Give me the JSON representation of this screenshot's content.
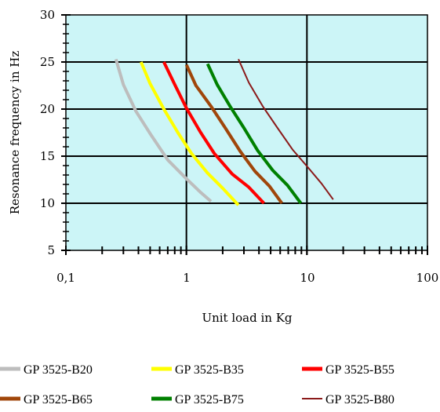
{
  "chart_data": {
    "type": "line",
    "title": "",
    "xlabel": "Unit load in Kg",
    "ylabel": "Resonance frequency in Hz",
    "x_scale": "log",
    "xlim": [
      0.1,
      100
    ],
    "ylim": [
      5,
      30
    ],
    "x_tick_labels": [
      "0,1",
      "1",
      "10",
      "100"
    ],
    "y_tick_labels": [
      "5",
      "10",
      "15",
      "20",
      "25",
      "30"
    ],
    "y_ticks": [
      5,
      10,
      15,
      20,
      25,
      30
    ],
    "x_ticks": [
      0.1,
      1,
      10,
      100
    ],
    "grid": true,
    "plot_background": "#ccf5f7",
    "legend_position": "bottom",
    "series": [
      {
        "name": "GP 3525-B20",
        "color": "#bdbdbd",
        "width": 4,
        "x": [
          0.26,
          0.3,
          0.38,
          0.5,
          0.7,
          1.0,
          1.3,
          1.6
        ],
        "y": [
          25.3,
          22.6,
          19.8,
          17.4,
          14.6,
          12.6,
          11.2,
          10.2
        ]
      },
      {
        "name": "GP 3525-B35",
        "color": "#ffff00",
        "width": 4,
        "x": [
          0.42,
          0.5,
          0.65,
          0.85,
          1.1,
          1.5,
          2.0,
          2.7
        ],
        "y": [
          25.0,
          22.7,
          20.0,
          17.5,
          15.3,
          13.2,
          11.6,
          9.8
        ]
      },
      {
        "name": "GP 3525-B55",
        "color": "#ff0000",
        "width": 4,
        "x": [
          0.65,
          0.8,
          1.0,
          1.3,
          1.7,
          2.4,
          3.3,
          4.4
        ],
        "y": [
          25.0,
          22.6,
          20.1,
          17.6,
          15.3,
          13.1,
          11.7,
          10.0
        ]
      },
      {
        "name": "GP 3525-B65",
        "color": "#a0460a",
        "width": 4,
        "x": [
          1.0,
          1.2,
          1.6,
          2.1,
          2.8,
          3.7,
          4.9,
          6.2
        ],
        "y": [
          24.7,
          22.5,
          20.3,
          18.0,
          15.5,
          13.4,
          11.8,
          10.0
        ]
      },
      {
        "name": "GP 3525-B75",
        "color": "#008000",
        "width": 4,
        "x": [
          1.5,
          1.8,
          2.3,
          3.0,
          3.9,
          5.2,
          6.9,
          8.9
        ],
        "y": [
          24.8,
          22.6,
          20.3,
          18.0,
          15.6,
          13.5,
          11.9,
          10.0
        ]
      },
      {
        "name": "GP 3525-B80",
        "color": "#8b1a1a",
        "width": 2,
        "x": [
          2.7,
          3.3,
          4.3,
          5.7,
          7.6,
          10.2,
          13.2,
          16.5
        ],
        "y": [
          25.3,
          22.8,
          20.3,
          18.0,
          15.7,
          13.8,
          12.1,
          10.4
        ]
      }
    ]
  }
}
